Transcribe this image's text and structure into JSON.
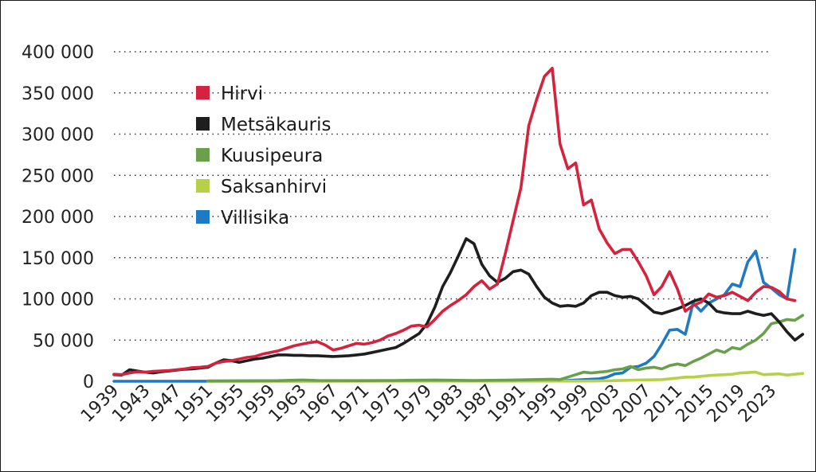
{
  "chart_data": {
    "type": "line",
    "title": "",
    "xlabel": "",
    "ylabel": "",
    "ylim": [
      0,
      400000
    ],
    "xlim": [
      1939,
      2023
    ],
    "grid": true,
    "legend_position": "top-left",
    "x_ticks": [
      1939,
      1943,
      1947,
      1951,
      1955,
      1959,
      1963,
      1967,
      1971,
      1975,
      1979,
      1983,
      1987,
      1991,
      1995,
      1999,
      2003,
      2007,
      2011,
      2015,
      2019,
      2023
    ],
    "y_ticks": [
      0,
      50000,
      100000,
      150000,
      200000,
      250000,
      300000,
      350000,
      400000
    ],
    "y_tick_labels": [
      "0",
      "50 000",
      "100 000",
      "150 000",
      "200 000",
      "250 000",
      "300 000",
      "350 000",
      "400 000"
    ],
    "series": [
      {
        "name": "Hirvi",
        "color": "#d4233e",
        "points": [
          [
            1939,
            8500
          ],
          [
            1940,
            8000
          ],
          [
            1941,
            10000
          ],
          [
            1942,
            11500
          ],
          [
            1943,
            11000
          ],
          [
            1944,
            12000
          ],
          [
            1945,
            12500
          ],
          [
            1946,
            13000
          ],
          [
            1947,
            14000
          ],
          [
            1948,
            15000
          ],
          [
            1949,
            16500
          ],
          [
            1950,
            17000
          ],
          [
            1951,
            18000
          ],
          [
            1952,
            22000
          ],
          [
            1953,
            24000
          ],
          [
            1954,
            25000
          ],
          [
            1955,
            27000
          ],
          [
            1956,
            29000
          ],
          [
            1957,
            30000
          ],
          [
            1958,
            33000
          ],
          [
            1959,
            35000
          ],
          [
            1960,
            37000
          ],
          [
            1961,
            40000
          ],
          [
            1962,
            43000
          ],
          [
            1963,
            45000
          ],
          [
            1964,
            47000
          ],
          [
            1965,
            48000
          ],
          [
            1966,
            44000
          ],
          [
            1967,
            38000
          ],
          [
            1968,
            40000
          ],
          [
            1969,
            43000
          ],
          [
            1970,
            46000
          ],
          [
            1971,
            45000
          ],
          [
            1972,
            47000
          ],
          [
            1973,
            50000
          ],
          [
            1974,
            55000
          ],
          [
            1975,
            58000
          ],
          [
            1976,
            62000
          ],
          [
            1977,
            67000
          ],
          [
            1978,
            68000
          ],
          [
            1979,
            66000
          ],
          [
            1980,
            75000
          ],
          [
            1981,
            85000
          ],
          [
            1982,
            92000
          ],
          [
            1983,
            98000
          ],
          [
            1984,
            105000
          ],
          [
            1985,
            115000
          ],
          [
            1986,
            122000
          ],
          [
            1987,
            112000
          ],
          [
            1988,
            118000
          ],
          [
            1989,
            155000
          ],
          [
            1990,
            195000
          ],
          [
            1991,
            235000
          ],
          [
            1992,
            310000
          ],
          [
            1993,
            342000
          ],
          [
            1994,
            370000
          ],
          [
            1995,
            380000
          ],
          [
            1996,
            288000
          ],
          [
            1997,
            258000
          ],
          [
            1998,
            265000
          ],
          [
            1999,
            214000
          ],
          [
            2000,
            220000
          ],
          [
            2001,
            185000
          ],
          [
            2002,
            168000
          ],
          [
            2003,
            155000
          ],
          [
            2004,
            160000
          ],
          [
            2005,
            160000
          ],
          [
            2006,
            145000
          ],
          [
            2007,
            128000
          ],
          [
            2008,
            105000
          ],
          [
            2009,
            115000
          ],
          [
            2010,
            133000
          ],
          [
            2011,
            112000
          ],
          [
            2012,
            85000
          ],
          [
            2013,
            92000
          ],
          [
            2014,
            96000
          ],
          [
            2015,
            106000
          ],
          [
            2016,
            102000
          ],
          [
            2017,
            104000
          ],
          [
            2018,
            108000
          ],
          [
            2019,
            103000
          ],
          [
            2020,
            98000
          ],
          [
            2021,
            108000
          ],
          [
            2022,
            115000
          ],
          [
            2023,
            114000
          ],
          [
            2024,
            109000
          ],
          [
            2025,
            100000
          ],
          [
            2026,
            98000
          ]
        ]
      },
      {
        "name": "Metsäkauris",
        "color": "#1e1e1e",
        "points": [
          [
            1939,
            8000
          ],
          [
            1940,
            7500
          ],
          [
            1941,
            14000
          ],
          [
            1942,
            12500
          ],
          [
            1943,
            11000
          ],
          [
            1944,
            10000
          ],
          [
            1945,
            11500
          ],
          [
            1946,
            12500
          ],
          [
            1947,
            13500
          ],
          [
            1948,
            14500
          ],
          [
            1949,
            15000
          ],
          [
            1950,
            16000
          ],
          [
            1951,
            17000
          ],
          [
            1952,
            22000
          ],
          [
            1953,
            26000
          ],
          [
            1954,
            25000
          ],
          [
            1955,
            23000
          ],
          [
            1956,
            25000
          ],
          [
            1957,
            27000
          ],
          [
            1958,
            28000
          ],
          [
            1959,
            30000
          ],
          [
            1960,
            32000
          ],
          [
            1961,
            32000
          ],
          [
            1962,
            31500
          ],
          [
            1963,
            31500
          ],
          [
            1964,
            31000
          ],
          [
            1965,
            31000
          ],
          [
            1966,
            30500
          ],
          [
            1967,
            30000
          ],
          [
            1968,
            30500
          ],
          [
            1969,
            31000
          ],
          [
            1970,
            32000
          ],
          [
            1971,
            33000
          ],
          [
            1972,
            35000
          ],
          [
            1973,
            37000
          ],
          [
            1974,
            39000
          ],
          [
            1975,
            41000
          ],
          [
            1976,
            46000
          ],
          [
            1977,
            52000
          ],
          [
            1978,
            58000
          ],
          [
            1979,
            70000
          ],
          [
            1980,
            90000
          ],
          [
            1981,
            115000
          ],
          [
            1982,
            132000
          ],
          [
            1983,
            152000
          ],
          [
            1984,
            173000
          ],
          [
            1985,
            167000
          ],
          [
            1986,
            142000
          ],
          [
            1987,
            128000
          ],
          [
            1988,
            120000
          ],
          [
            1989,
            125000
          ],
          [
            1990,
            133000
          ],
          [
            1991,
            135000
          ],
          [
            1992,
            130000
          ],
          [
            1993,
            115000
          ],
          [
            1994,
            102000
          ],
          [
            1995,
            95000
          ],
          [
            1996,
            91000
          ],
          [
            1997,
            92000
          ],
          [
            1998,
            91000
          ],
          [
            1999,
            95000
          ],
          [
            2000,
            104000
          ],
          [
            2001,
            108000
          ],
          [
            2002,
            108000
          ],
          [
            2003,
            104000
          ],
          [
            2004,
            102000
          ],
          [
            2005,
            103000
          ],
          [
            2006,
            100000
          ],
          [
            2007,
            92000
          ],
          [
            2008,
            84000
          ],
          [
            2009,
            82000
          ],
          [
            2010,
            85000
          ],
          [
            2011,
            88000
          ],
          [
            2012,
            92000
          ],
          [
            2013,
            97000
          ],
          [
            2014,
            100000
          ],
          [
            2015,
            95000
          ],
          [
            2016,
            85000
          ],
          [
            2017,
            83000
          ],
          [
            2018,
            82000
          ],
          [
            2019,
            82000
          ],
          [
            2020,
            85000
          ],
          [
            2021,
            82000
          ],
          [
            2022,
            80000
          ],
          [
            2023,
            82000
          ],
          [
            2024,
            72000
          ],
          [
            2025,
            60000
          ],
          [
            2026,
            50000
          ],
          [
            2027,
            57000
          ]
        ]
      },
      {
        "name": "Kuusipeura",
        "color": "#6aa04c",
        "points": [
          [
            1951,
            500
          ],
          [
            1960,
            800
          ],
          [
            1963,
            1500
          ],
          [
            1965,
            1000
          ],
          [
            1970,
            800
          ],
          [
            1975,
            1000
          ],
          [
            1980,
            1500
          ],
          [
            1985,
            1000
          ],
          [
            1990,
            1500
          ],
          [
            1995,
            2500
          ],
          [
            1996,
            2000
          ],
          [
            1997,
            5000
          ],
          [
            1998,
            8000
          ],
          [
            1999,
            11000
          ],
          [
            2000,
            10000
          ],
          [
            2001,
            11000
          ],
          [
            2002,
            12000
          ],
          [
            2003,
            14000
          ],
          [
            2004,
            15000
          ],
          [
            2005,
            18000
          ],
          [
            2006,
            14000
          ],
          [
            2007,
            16000
          ],
          [
            2008,
            17000
          ],
          [
            2009,
            15000
          ],
          [
            2010,
            19000
          ],
          [
            2011,
            21000
          ],
          [
            2012,
            19000
          ],
          [
            2013,
            24000
          ],
          [
            2014,
            28000
          ],
          [
            2015,
            33000
          ],
          [
            2016,
            38000
          ],
          [
            2017,
            35000
          ],
          [
            2018,
            41000
          ],
          [
            2019,
            39000
          ],
          [
            2020,
            45000
          ],
          [
            2021,
            50000
          ],
          [
            2022,
            58000
          ],
          [
            2023,
            70000
          ],
          [
            2024,
            72000
          ],
          [
            2025,
            75000
          ],
          [
            2026,
            74000
          ],
          [
            2027,
            80000
          ]
        ]
      },
      {
        "name": "Saksanhirvi",
        "color": "#b7d04a",
        "points": [
          [
            1951,
            0
          ],
          [
            2000,
            300
          ],
          [
            2003,
            800
          ],
          [
            2006,
            1500
          ],
          [
            2009,
            2000
          ],
          [
            2011,
            4000
          ],
          [
            2012,
            5000
          ],
          [
            2013,
            5000
          ],
          [
            2014,
            6000
          ],
          [
            2015,
            7000
          ],
          [
            2016,
            7500
          ],
          [
            2017,
            8000
          ],
          [
            2018,
            8500
          ],
          [
            2019,
            10000
          ],
          [
            2020,
            10500
          ],
          [
            2021,
            11000
          ],
          [
            2022,
            8000
          ],
          [
            2023,
            8500
          ],
          [
            2024,
            9000
          ],
          [
            2025,
            7500
          ],
          [
            2026,
            8500
          ],
          [
            2027,
            9500
          ]
        ]
      },
      {
        "name": "Villisika",
        "color": "#1f7ac2",
        "points": [
          [
            1939,
            0
          ],
          [
            1996,
            500
          ],
          [
            1999,
            2000
          ],
          [
            2001,
            3000
          ],
          [
            2002,
            5000
          ],
          [
            2003,
            9000
          ],
          [
            2004,
            10000
          ],
          [
            2005,
            17000
          ],
          [
            2006,
            18000
          ],
          [
            2007,
            22000
          ],
          [
            2008,
            30000
          ],
          [
            2009,
            45000
          ],
          [
            2010,
            62000
          ],
          [
            2011,
            63000
          ],
          [
            2012,
            57000
          ],
          [
            2013,
            95000
          ],
          [
            2014,
            85000
          ],
          [
            2015,
            95000
          ],
          [
            2016,
            100000
          ],
          [
            2017,
            105000
          ],
          [
            2018,
            118000
          ],
          [
            2019,
            115000
          ],
          [
            2020,
            145000
          ],
          [
            2021,
            158000
          ],
          [
            2022,
            120000
          ],
          [
            2023,
            113000
          ],
          [
            2024,
            105000
          ],
          [
            2025,
            100000
          ],
          [
            2026,
            160000
          ]
        ]
      }
    ]
  }
}
